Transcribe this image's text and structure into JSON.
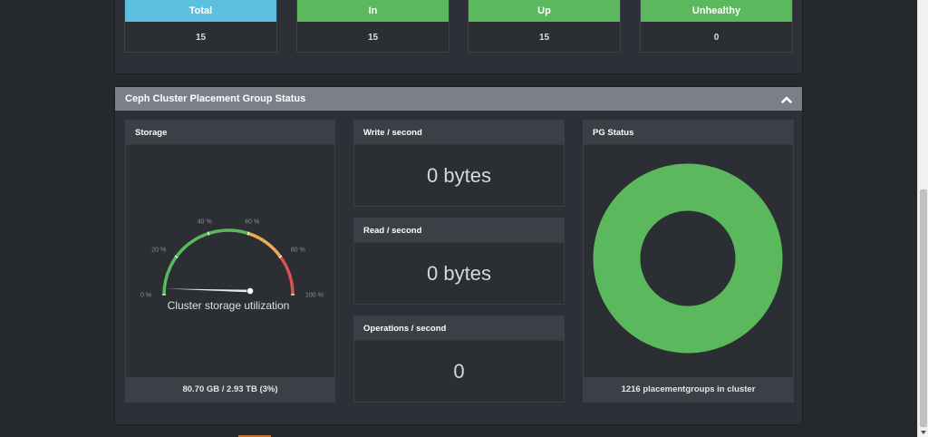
{
  "top_stats": [
    {
      "label": "Total",
      "value": "15",
      "color": "#5bc0de"
    },
    {
      "label": "In",
      "value": "15",
      "color": "#5cb85c"
    },
    {
      "label": "Up",
      "value": "15",
      "color": "#5cb85c"
    },
    {
      "label": "Unhealthy",
      "value": "0",
      "color": "#5cb85c"
    }
  ],
  "pg_panel": {
    "title": "Ceph Cluster Placement Group Status",
    "collapse_icon": "chevron-up-icon"
  },
  "storage": {
    "title": "Storage",
    "gauge": {
      "ticks": [
        "0 %",
        "20 %",
        "40 %",
        "60 %",
        "80 %",
        "100 %"
      ],
      "label": "Cluster storage utilization",
      "value_percent": 3,
      "colors": {
        "ok": "#5cb85c",
        "warn": "#f0ad4e",
        "crit": "#d9534f"
      }
    },
    "footer": "80.70 GB / 2.93 TB (3%)"
  },
  "write": {
    "title": "Write / second",
    "value": "0 bytes"
  },
  "read": {
    "title": "Read / second",
    "value": "0 bytes"
  },
  "operations": {
    "title": "Operations / second",
    "value": "0"
  },
  "pg_status": {
    "title": "PG Status",
    "donut_color": "#5cb85c",
    "footer": "1216 placementgroups in cluster"
  }
}
